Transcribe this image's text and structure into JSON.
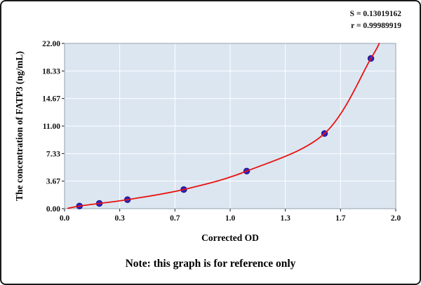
{
  "figure": {
    "stats": [
      "S = 0.13019162",
      "r = 0.99989919"
    ],
    "note": "Note: this graph is for reference only"
  },
  "chart_data": {
    "type": "scatter",
    "title": "",
    "xlabel": "Corrected OD",
    "ylabel": "The concentration of FATP3 (ng/mL)",
    "xlim": [
      0.0,
      2.0
    ],
    "ylim": [
      0.0,
      22.0
    ],
    "x_tick_labels": [
      "0.0",
      "0.3",
      "0.7",
      "1.0",
      "1.3",
      "1.7",
      "2.0"
    ],
    "y_tick_labels": [
      "0.00",
      "3.67",
      "7.33",
      "11.00",
      "14.67",
      "18.33",
      "22.00"
    ],
    "grid": true,
    "legend": "none",
    "series": [
      {
        "name": "standard-points",
        "type": "scatter",
        "color": "#2b22c4",
        "points": [
          {
            "x": 0.09,
            "y": 0.35
          },
          {
            "x": 0.21,
            "y": 0.7
          },
          {
            "x": 0.38,
            "y": 1.2
          },
          {
            "x": 0.72,
            "y": 2.55
          },
          {
            "x": 1.1,
            "y": 5.0
          },
          {
            "x": 1.57,
            "y": 10.0
          },
          {
            "x": 1.85,
            "y": 20.0
          }
        ]
      },
      {
        "name": "fitted-curve",
        "type": "line",
        "color": "#e8120e",
        "points": [
          {
            "x": 0.02,
            "y": 0.05
          },
          {
            "x": 0.09,
            "y": 0.35
          },
          {
            "x": 0.21,
            "y": 0.7
          },
          {
            "x": 0.38,
            "y": 1.2
          },
          {
            "x": 0.72,
            "y": 2.55
          },
          {
            "x": 1.1,
            "y": 5.0
          },
          {
            "x": 1.57,
            "y": 10.0
          },
          {
            "x": 1.85,
            "y": 20.0
          },
          {
            "x": 1.9,
            "y": 22.0
          }
        ]
      }
    ],
    "colors": {
      "plot_bg": "#dbe6f1",
      "grid": "#ffffff",
      "frame": "#93a2b2",
      "tick": "#111111",
      "text": "#111111"
    }
  }
}
